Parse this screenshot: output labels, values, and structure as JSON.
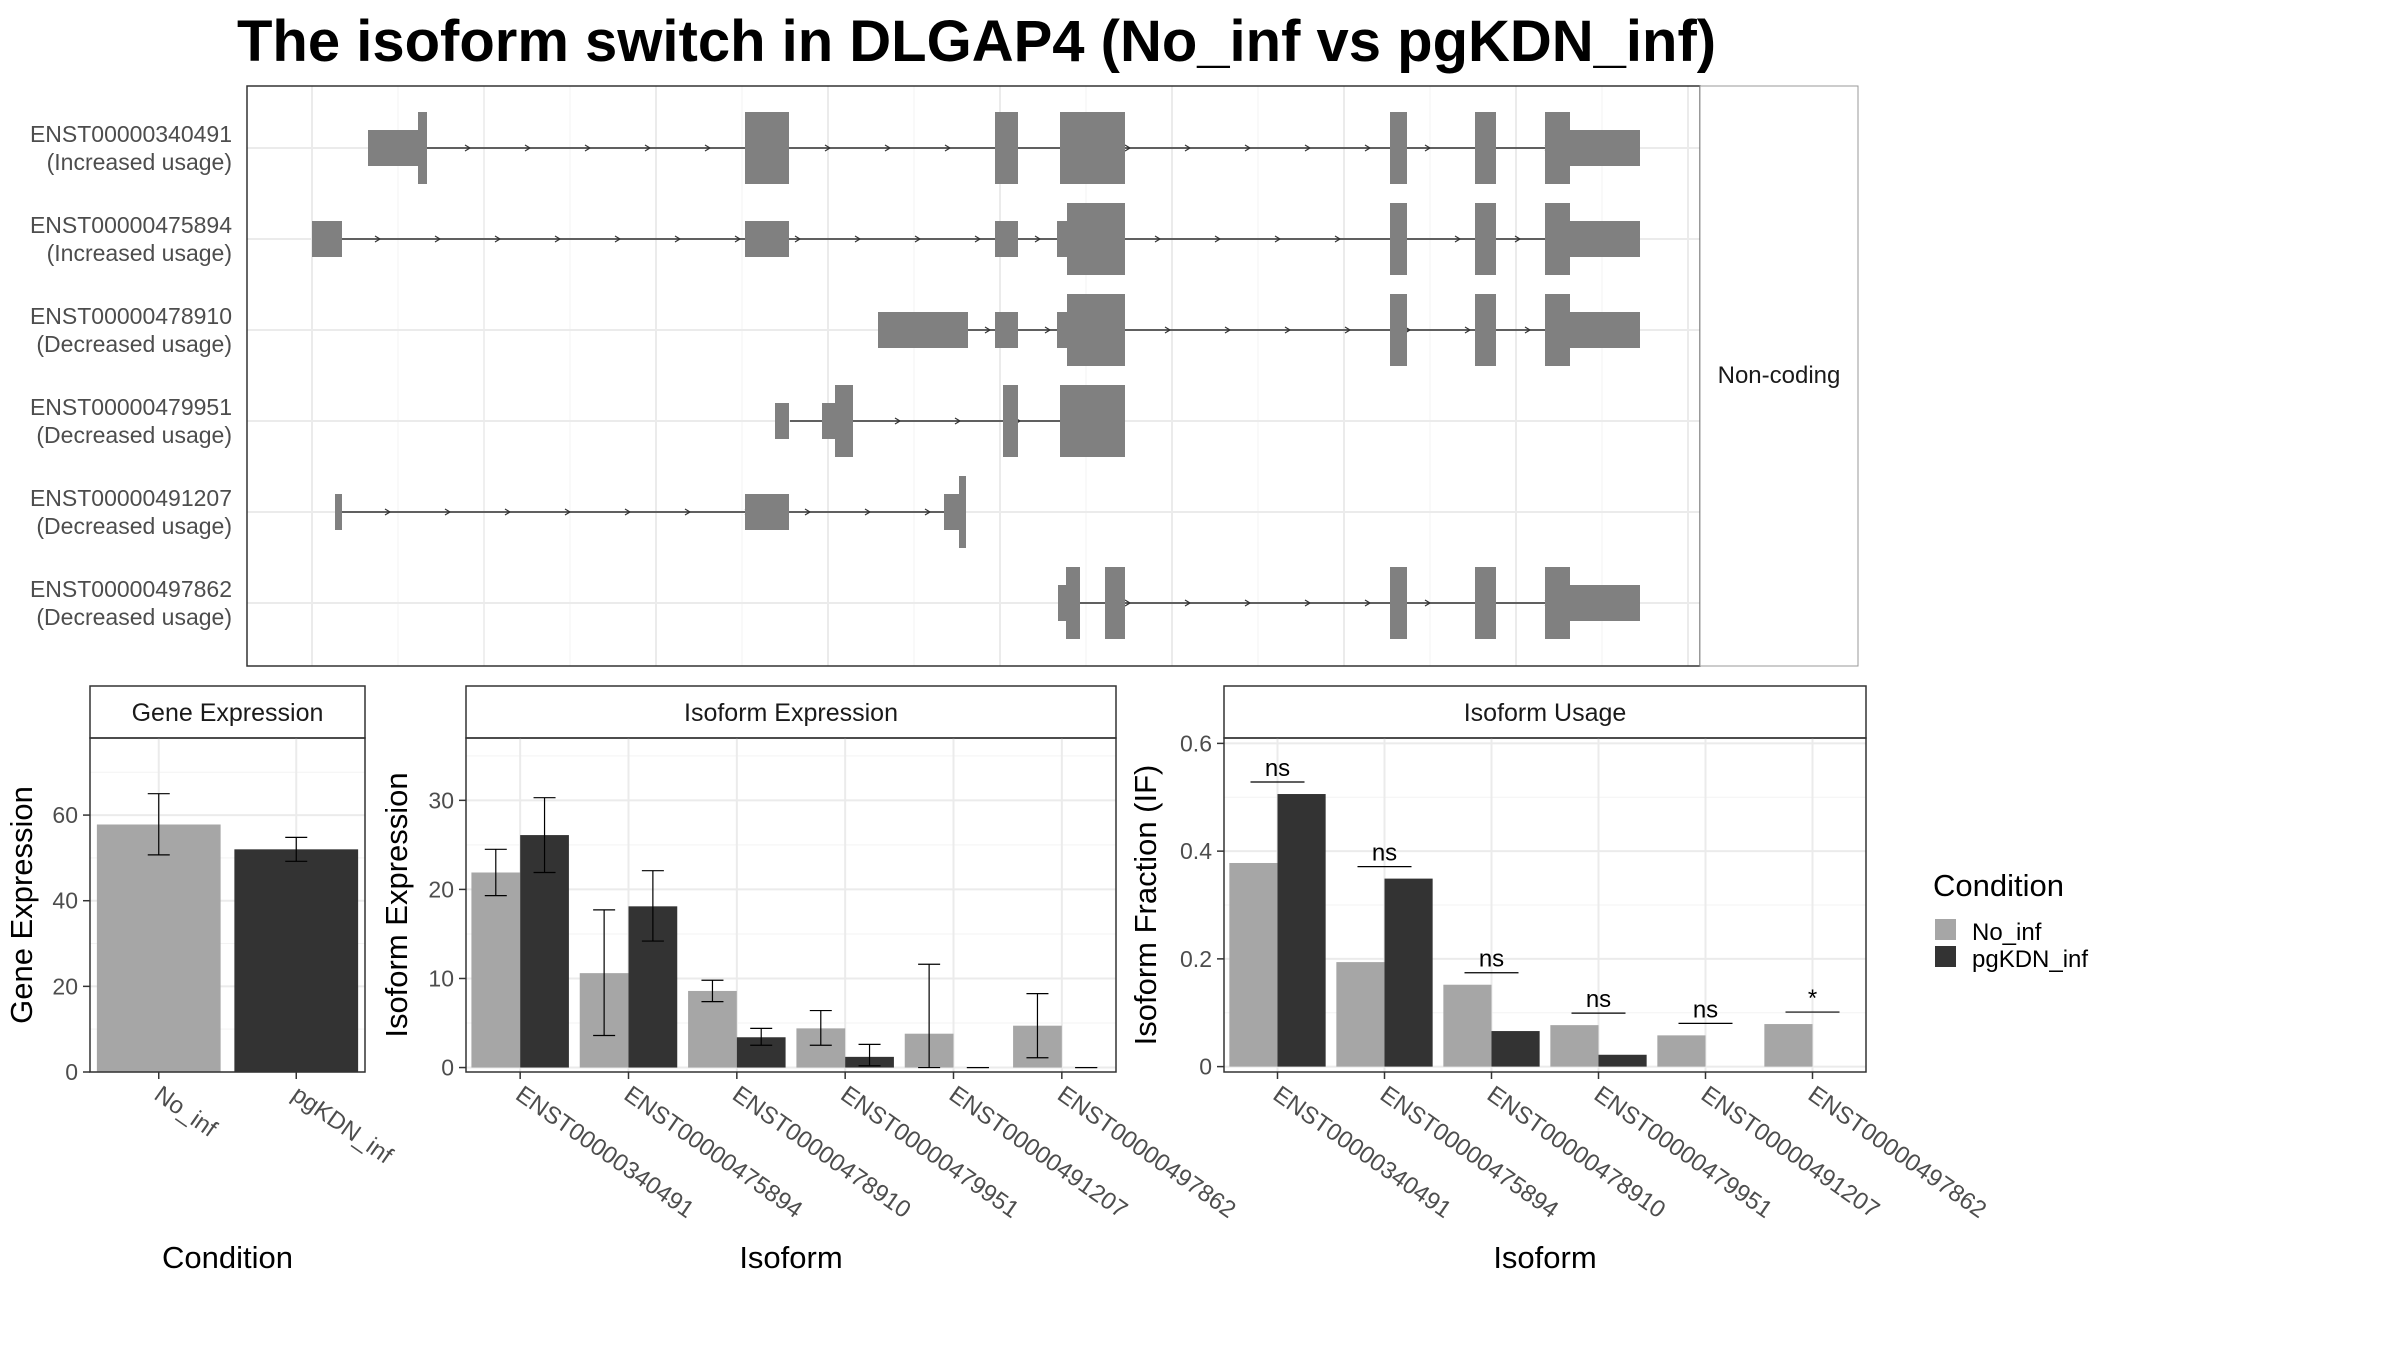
{
  "title": "The isoform switch in DLGAP4 (No_inf vs pgKDN_inf)",
  "colors": {
    "no_inf": "#a6a6a6",
    "pgkdn_inf": "#333333",
    "exon": "#808080",
    "panel_border": "#333333",
    "strip_fill": "#ffffff",
    "grid": "#ebebeb"
  },
  "structure_panel": {
    "strip_label": "Non-coding",
    "isoforms": [
      {
        "id": "ENST00000340491",
        "label": "(Increased usage)"
      },
      {
        "id": "ENST00000475894",
        "label": "(Increased usage)"
      },
      {
        "id": "ENST00000478910",
        "label": "(Decreased usage)"
      },
      {
        "id": "ENST00000479951",
        "label": "(Decreased usage)"
      },
      {
        "id": "ENST00000491207",
        "label": "(Decreased usage)"
      },
      {
        "id": "ENST00000497862",
        "label": "(Decreased usage)"
      }
    ]
  },
  "legend": {
    "title": "Condition",
    "entries": [
      "No_inf",
      "pgKDN_inf"
    ]
  },
  "chart_data": [
    {
      "type": "bar",
      "title": "Gene Expression",
      "xlabel": "Condition",
      "ylabel": "Gene Expression",
      "categories": [
        "No_inf",
        "pgKDN_inf"
      ],
      "values": [
        57.8,
        52.0
      ],
      "error_low": [
        50.7,
        49.2
      ],
      "error_high": [
        65.0,
        54.8
      ],
      "ylim": [
        0,
        78
      ],
      "yticks": [
        0,
        20,
        40,
        60
      ]
    },
    {
      "type": "bar",
      "title": "Isoform Expression",
      "xlabel": "Isoform",
      "ylabel": "Isoform Expression",
      "categories": [
        "ENST00000340491",
        "ENST00000475894",
        "ENST00000478910",
        "ENST00000479951",
        "ENST00000491207",
        "ENST00000497862"
      ],
      "series": [
        {
          "name": "No_inf",
          "values": [
            21.9,
            10.6,
            8.6,
            4.4,
            3.8,
            4.7
          ],
          "error_low": [
            19.3,
            3.6,
            7.4,
            2.5,
            0.0,
            1.1
          ],
          "error_high": [
            24.5,
            17.7,
            9.8,
            6.4,
            11.6,
            8.3
          ]
        },
        {
          "name": "pgKDN_inf",
          "values": [
            26.1,
            18.1,
            3.4,
            1.2,
            0.0,
            0.0
          ],
          "error_low": [
            21.9,
            14.2,
            2.5,
            0.2,
            0.0,
            0.0
          ],
          "error_high": [
            30.3,
            22.1,
            4.4,
            2.6,
            0.0,
            0.0
          ]
        }
      ],
      "ylim": [
        -0.5,
        37
      ],
      "yticks": [
        0,
        10,
        20,
        30
      ]
    },
    {
      "type": "bar",
      "title": "Isoform Usage",
      "xlabel": "Isoform",
      "ylabel": "Isoform Fraction (IF)",
      "categories": [
        "ENST00000340491",
        "ENST00000475894",
        "ENST00000478910",
        "ENST00000479951",
        "ENST00000491207",
        "ENST00000497862"
      ],
      "series": [
        {
          "name": "No_inf",
          "values": [
            0.378,
            0.194,
            0.152,
            0.077,
            0.058,
            0.079
          ]
        },
        {
          "name": "pgKDN_inf",
          "values": [
            0.506,
            0.349,
            0.066,
            0.022,
            0.0,
            0.0
          ]
        }
      ],
      "significance": [
        "ns",
        "ns",
        "ns",
        "ns",
        "ns",
        "*"
      ],
      "ylim": [
        -0.01,
        0.61
      ],
      "yticks": [
        0.0,
        0.2,
        0.4,
        0.6
      ]
    }
  ]
}
